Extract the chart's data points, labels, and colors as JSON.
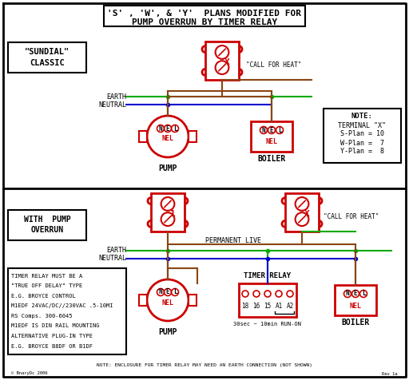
{
  "title_line1": "'S' , 'W', & 'Y'  PLANS MODIFIED FOR",
  "title_line2": "PUMP OVERRUN BY TIMER RELAY",
  "bg_color": "#ffffff",
  "red": "#cc0000",
  "green": "#00aa00",
  "blue": "#0000cc",
  "brown": "#8B4513",
  "black": "#000000",
  "sundial_label1": "\"SUNDIAL\"",
  "sundial_label2": "CLASSIC",
  "pump_label": "WITH  PUMP",
  "overrun_label": "OVERRUN",
  "note_title": "NOTE:",
  "note_line1": "TERMINAL \"X\"",
  "note_line2": "S-Plan = 10",
  "note_line3": "W-Plan =  7",
  "note_line4": "Y-Plan =  8",
  "call_heat": "\"CALL FOR HEAT\"",
  "earth_label": "EARTH",
  "neutral_label": "NEUTRAL",
  "perm_live": "PERMANENT LIVE",
  "timer_label": "TIMER RELAY",
  "timer_sub": "30sec ~ 10min RUN-ON",
  "pump_text": "PUMP",
  "boiler_text": "BOILER",
  "note2_lines": [
    "TIMER RELAY MUST BE A",
    "\"TRUE OFF DELAY\" TYPE",
    "E.G. BROYCE CONTROL",
    "M1EDF 24VAC/DC//230VAC .5-10MI",
    "RS Comps. 300-6045",
    "M1EDF IS DIN RAIL MOUNTING",
    "ALTERNATIVE PLUG-IN TYPE",
    "E.G. BROYCE B8DF OR B1DF"
  ],
  "bottom_note": "NOTE: ENCLOSURE FOR TIMER RELAY MAY NEED AN EARTH CONNECTION (NOT SHOWN)",
  "watermark": "© BnaryDc 2006",
  "rev": "Rev 1a"
}
